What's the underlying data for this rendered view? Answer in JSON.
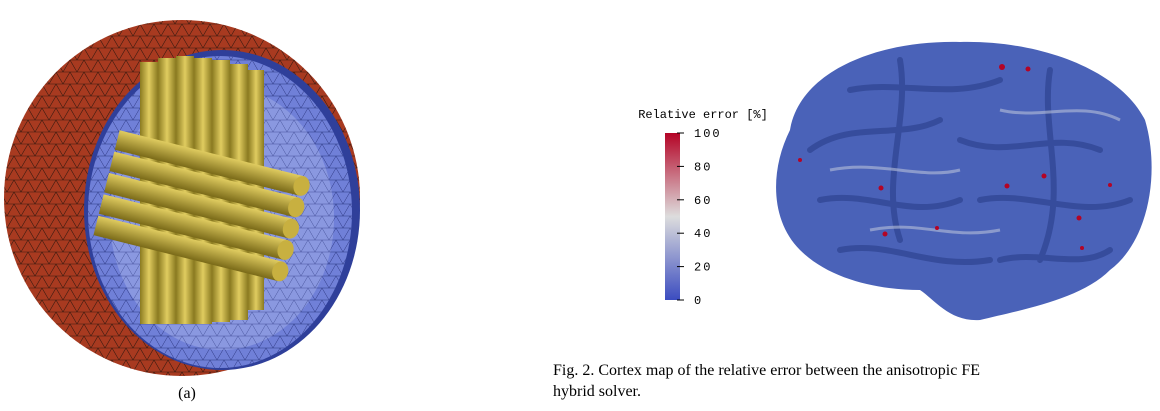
{
  "figure_a": {
    "label": "(a)"
  },
  "colorbar": {
    "title": "Relative error [%]",
    "lim": [
      0,
      100
    ],
    "ticks": [
      0,
      20,
      40,
      60,
      80,
      100
    ]
  },
  "caption": {
    "lines": [
      "Fig. 2.  Cortex map of the relative error between the anisotropic FE",
      "hybrid solver."
    ]
  }
}
